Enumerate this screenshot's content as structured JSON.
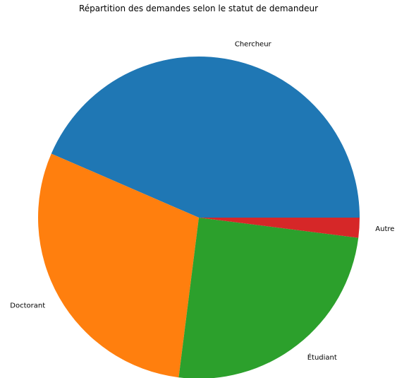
{
  "chart_data": {
    "type": "pie",
    "title": "Répartition des demandes selon le statut de demandeur",
    "slices": [
      {
        "label": "Chercheur",
        "value": 43.5,
        "color": "#1f77b4"
      },
      {
        "label": "Doctorant",
        "value": 29.5,
        "color": "#ff7f0e"
      },
      {
        "label": "Étudiant",
        "value": 25.0,
        "color": "#2ca02c"
      },
      {
        "label": "Autre",
        "value": 2.0,
        "color": "#d62728"
      }
    ],
    "start_angle": 0,
    "direction": "counterclockwise",
    "legend": "none"
  }
}
